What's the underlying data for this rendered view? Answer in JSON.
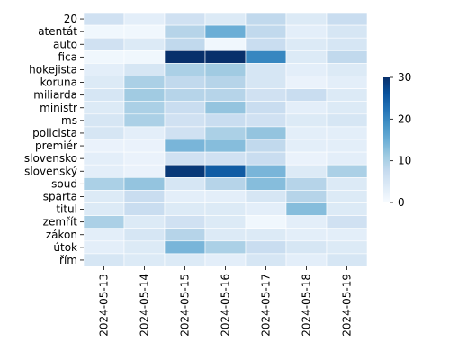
{
  "chart_data": {
    "type": "heatmap",
    "title": "",
    "xlabel": "",
    "ylabel": "",
    "columns": [
      "2024-05-13",
      "2024-05-14",
      "2024-05-15",
      "2024-05-16",
      "2024-05-17",
      "2024-05-18",
      "2024-05-19"
    ],
    "rows": [
      "20",
      "atentát",
      "auto",
      "fica",
      "hokejista",
      "koruna",
      "miliarda",
      "ministr",
      "ms",
      "policista",
      "premiér",
      "slovensko",
      "slovenský",
      "soud",
      "sparta",
      "titul",
      "zemřít",
      "zákon",
      "útok",
      "řím"
    ],
    "values": [
      [
        6,
        3,
        6,
        4,
        8,
        4,
        7
      ],
      [
        1,
        1,
        9,
        15,
        8,
        3,
        5
      ],
      [
        6,
        4,
        8,
        1,
        7,
        4,
        5
      ],
      [
        1,
        1,
        30,
        30,
        20,
        4,
        8
      ],
      [
        3,
        5,
        10,
        11,
        5,
        3,
        4
      ],
      [
        4,
        10,
        8,
        9,
        5,
        2,
        3
      ],
      [
        5,
        11,
        9,
        9,
        6,
        7,
        4
      ],
      [
        4,
        10,
        7,
        12,
        7,
        3,
        4
      ],
      [
        5,
        10,
        6,
        7,
        6,
        4,
        5
      ],
      [
        5,
        3,
        6,
        10,
        12,
        3,
        3
      ],
      [
        2,
        2,
        14,
        13,
        8,
        3,
        3
      ],
      [
        3,
        2,
        6,
        6,
        7,
        2,
        3
      ],
      [
        3,
        2,
        29,
        25,
        14,
        4,
        10
      ],
      [
        10,
        12,
        5,
        9,
        13,
        9,
        4
      ],
      [
        4,
        7,
        3,
        3,
        5,
        9,
        4
      ],
      [
        4,
        7,
        4,
        4,
        3,
        13,
        4
      ],
      [
        10,
        4,
        6,
        4,
        1,
        3,
        6
      ],
      [
        3,
        5,
        9,
        4,
        4,
        3,
        3
      ],
      [
        3,
        4,
        14,
        10,
        7,
        5,
        4
      ],
      [
        5,
        4,
        4,
        3,
        5,
        3,
        5
      ]
    ],
    "vmin": 0,
    "vmax": 30,
    "colormap": "Blues",
    "colorbar": {
      "ticks": [
        0,
        10,
        20,
        30
      ],
      "tick_labels": [
        "0",
        "10",
        "20",
        "30"
      ]
    },
    "grid": false,
    "legend": "colorbar-right"
  }
}
